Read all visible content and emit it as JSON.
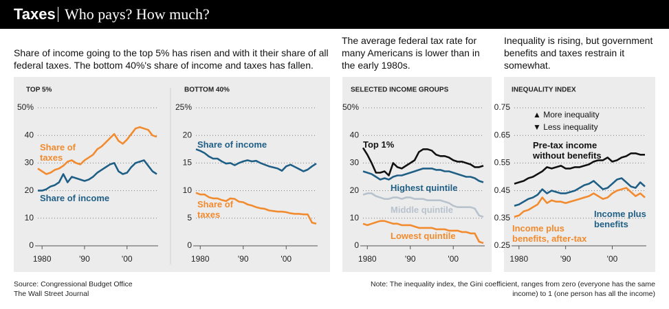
{
  "header": {
    "title": "Taxes",
    "subtitle": "Who pays? How much?"
  },
  "sections": [
    "Share of income going to the top 5% has risen and with it their share of all federal taxes. The bottom 40%'s share of income and taxes has fallen.",
    "The average federal tax rate for many Americans is lower than in the early 1980s.",
    "Inequality is rising, but government benefits and taxes restrain it somewhat."
  ],
  "chart_data": [
    {
      "type": "line",
      "title": "TOP 5%",
      "x": [
        1979,
        1980,
        1981,
        1982,
        1983,
        1984,
        1985,
        1986,
        1987,
        1988,
        1989,
        1990,
        1991,
        1992,
        1993,
        1994,
        1995,
        1996,
        1997,
        1998,
        1999,
        2000,
        2001,
        2002,
        2003,
        2004,
        2005,
        2006,
        2007
      ],
      "xlim": [
        1979,
        2007
      ],
      "xticks": [
        1980,
        {
          "value": 1990,
          "label": "'90"
        },
        {
          "value": 2000,
          "label": "'00"
        }
      ],
      "ylim": [
        0,
        50
      ],
      "yticks": [
        0,
        10,
        20,
        30,
        40,
        {
          "value": 50,
          "label": "50%"
        }
      ],
      "grid": true,
      "series": [
        {
          "name": "Share of taxes",
          "color": "#f28a2e",
          "values": [
            28,
            27,
            26,
            26.5,
            27.5,
            28,
            29,
            30.5,
            31,
            30,
            29.5,
            31,
            32,
            33,
            35,
            36,
            37.5,
            39,
            40.5,
            38,
            37,
            38.5,
            40.5,
            42.5,
            43,
            42.5,
            42,
            40,
            39.5
          ]
        },
        {
          "name": "Share of income",
          "color": "#1f5f86",
          "values": [
            20,
            20,
            20.5,
            21.5,
            22,
            23,
            26,
            23,
            25,
            24.5,
            24,
            23.5,
            24,
            25,
            26.5,
            27.5,
            28.5,
            29.5,
            30,
            27,
            26,
            26.5,
            28.5,
            30,
            30.5,
            31,
            29,
            27,
            26
          ]
        }
      ]
    },
    {
      "type": "line",
      "title": "BOTTOM 40%",
      "x": [
        1979,
        1980,
        1981,
        1982,
        1983,
        1984,
        1985,
        1986,
        1987,
        1988,
        1989,
        1990,
        1991,
        1992,
        1993,
        1994,
        1995,
        1996,
        1997,
        1998,
        1999,
        2000,
        2001,
        2002,
        2003,
        2004,
        2005,
        2006,
        2007
      ],
      "xlim": [
        1979,
        2007
      ],
      "xticks": [
        1980,
        {
          "value": 1990,
          "label": "'90"
        },
        {
          "value": 2000,
          "label": "'00"
        }
      ],
      "ylim": [
        0,
        25
      ],
      "yticks": [
        0,
        5,
        10,
        15,
        20,
        {
          "value": 25,
          "label": "25%"
        }
      ],
      "grid": true,
      "series": [
        {
          "name": "Share of income",
          "color": "#1f5f86",
          "values": [
            17.5,
            17.2,
            16.8,
            16.2,
            15.8,
            15.8,
            15.3,
            14.9,
            15,
            14.6,
            15,
            15.3,
            15.5,
            15.3,
            15.4,
            15,
            14.7,
            14.4,
            14.2,
            14,
            13.6,
            14.4,
            14.7,
            14.3,
            13.9,
            13.5,
            13.8,
            14.4,
            14.9
          ]
        },
        {
          "name": "Share of taxes",
          "color": "#f28a2e",
          "values": [
            9.6,
            9.3,
            9.3,
            8.8,
            8.6,
            8.6,
            8.3,
            8.1,
            8.6,
            8.5,
            8,
            7.9,
            7.5,
            7.3,
            7,
            6.8,
            6.7,
            6.4,
            6.3,
            6.2,
            6.2,
            6.1,
            5.9,
            5.8,
            5.8,
            5.7,
            5.7,
            4.2,
            4
          ]
        }
      ]
    },
    {
      "type": "line",
      "title": "SELECTED INCOME GROUPS",
      "x": [
        1979,
        1980,
        1981,
        1982,
        1983,
        1984,
        1985,
        1986,
        1987,
        1988,
        1989,
        1990,
        1991,
        1992,
        1993,
        1994,
        1995,
        1996,
        1997,
        1998,
        1999,
        2000,
        2001,
        2002,
        2003,
        2004,
        2005,
        2006,
        2007
      ],
      "xlim": [
        1979,
        2007
      ],
      "xticks": [
        1980,
        {
          "value": 1990,
          "label": "'90"
        },
        {
          "value": 2000,
          "label": "'00"
        }
      ],
      "ylim": [
        0,
        50
      ],
      "yticks": [
        0,
        10,
        20,
        30,
        40,
        {
          "value": 50,
          "label": "50%"
        }
      ],
      "grid": true,
      "series": [
        {
          "name": "Top 1%",
          "color": "#111111",
          "values": [
            35.5,
            33,
            30,
            26.5,
            26.5,
            27,
            25.5,
            30,
            28.5,
            28,
            29,
            30,
            31,
            34,
            35,
            35,
            34.5,
            33,
            32.5,
            32.5,
            32,
            31,
            30.5,
            30.5,
            30,
            29.5,
            28.5,
            28.5,
            29
          ]
        },
        {
          "name": "Highest quintile",
          "color": "#1f5f86",
          "values": [
            27,
            26.5,
            26,
            25,
            24,
            24.5,
            24,
            25,
            25.5,
            25.5,
            26,
            26.5,
            27,
            27.5,
            28,
            28,
            28,
            27.5,
            27.5,
            27,
            27,
            26.5,
            26,
            25.5,
            25,
            25,
            24.5,
            23.5,
            23
          ]
        },
        {
          "name": "Middle quintile",
          "color": "#b8c2cc",
          "values": [
            18.5,
            19,
            19,
            18,
            17.5,
            17,
            17,
            17.5,
            17.5,
            17,
            17.5,
            17.5,
            17,
            17,
            17,
            16.5,
            16.5,
            16.5,
            16.5,
            16,
            15.5,
            14.5,
            14,
            14,
            14,
            14,
            13.5,
            11,
            10.5
          ]
        },
        {
          "name": "Lowest quintile",
          "color": "#f28a2e",
          "values": [
            8,
            7.5,
            8,
            8.5,
            9,
            9,
            8.5,
            8,
            8,
            7.5,
            7.5,
            7.5,
            7,
            6.5,
            6.5,
            6.5,
            6.5,
            6,
            6,
            6,
            5.5,
            5.5,
            5.5,
            5,
            5,
            4.5,
            4.5,
            1.5,
            1
          ]
        }
      ]
    },
    {
      "type": "line",
      "title": "INEQUALITY INDEX",
      "annotations": [
        "▲ More inequality",
        "▼ Less inequality"
      ],
      "x": [
        1979,
        1980,
        1981,
        1982,
        1983,
        1984,
        1985,
        1986,
        1987,
        1988,
        1989,
        1990,
        1991,
        1992,
        1993,
        1994,
        1995,
        1996,
        1997,
        1998,
        1999,
        2000,
        2001,
        2002,
        2003,
        2004,
        2005,
        2006,
        2007
      ],
      "xlim": [
        1979,
        2007
      ],
      "xticks": [
        1980,
        {
          "value": 1990,
          "label": "'90"
        },
        {
          "value": 2000,
          "label": "'00"
        }
      ],
      "ylim": [
        0.25,
        0.75
      ],
      "yticks": [
        0.25,
        0.35,
        0.45,
        0.55,
        0.65,
        0.75
      ],
      "grid": true,
      "series": [
        {
          "name": "Pre-tax income without benefits",
          "color": "#111111",
          "values": [
            0.475,
            0.48,
            0.485,
            0.495,
            0.5,
            0.51,
            0.52,
            0.535,
            0.53,
            0.535,
            0.54,
            0.53,
            0.53,
            0.535,
            0.535,
            0.54,
            0.545,
            0.555,
            0.56,
            0.56,
            0.57,
            0.555,
            0.56,
            0.57,
            0.575,
            0.585,
            0.585,
            0.58,
            0.58
          ]
        },
        {
          "name": "Income plus benefits",
          "color": "#1f5f86",
          "values": [
            0.395,
            0.4,
            0.41,
            0.42,
            0.425,
            0.435,
            0.455,
            0.44,
            0.45,
            0.445,
            0.44,
            0.44,
            0.445,
            0.45,
            0.46,
            0.47,
            0.475,
            0.485,
            0.47,
            0.455,
            0.46,
            0.475,
            0.49,
            0.495,
            0.48,
            0.465,
            0.46,
            0.48,
            0.465
          ]
        },
        {
          "name": "Income plus benefits, after-tax",
          "color": "#f28a2e",
          "values": [
            0.355,
            0.36,
            0.375,
            0.38,
            0.39,
            0.4,
            0.425,
            0.405,
            0.415,
            0.41,
            0.41,
            0.405,
            0.41,
            0.415,
            0.42,
            0.425,
            0.43,
            0.44,
            0.43,
            0.42,
            0.425,
            0.44,
            0.45,
            0.455,
            0.46,
            0.445,
            0.43,
            0.44,
            0.425
          ]
        }
      ]
    }
  ],
  "footer": {
    "source": [
      "Source: Congressional Budget Office",
      "The Wall Street Journal"
    ],
    "note": "Note: The inequality index, the Gini coefficient, ranges from zero (everyone has the same income) to 1 (one person has all the income)"
  }
}
